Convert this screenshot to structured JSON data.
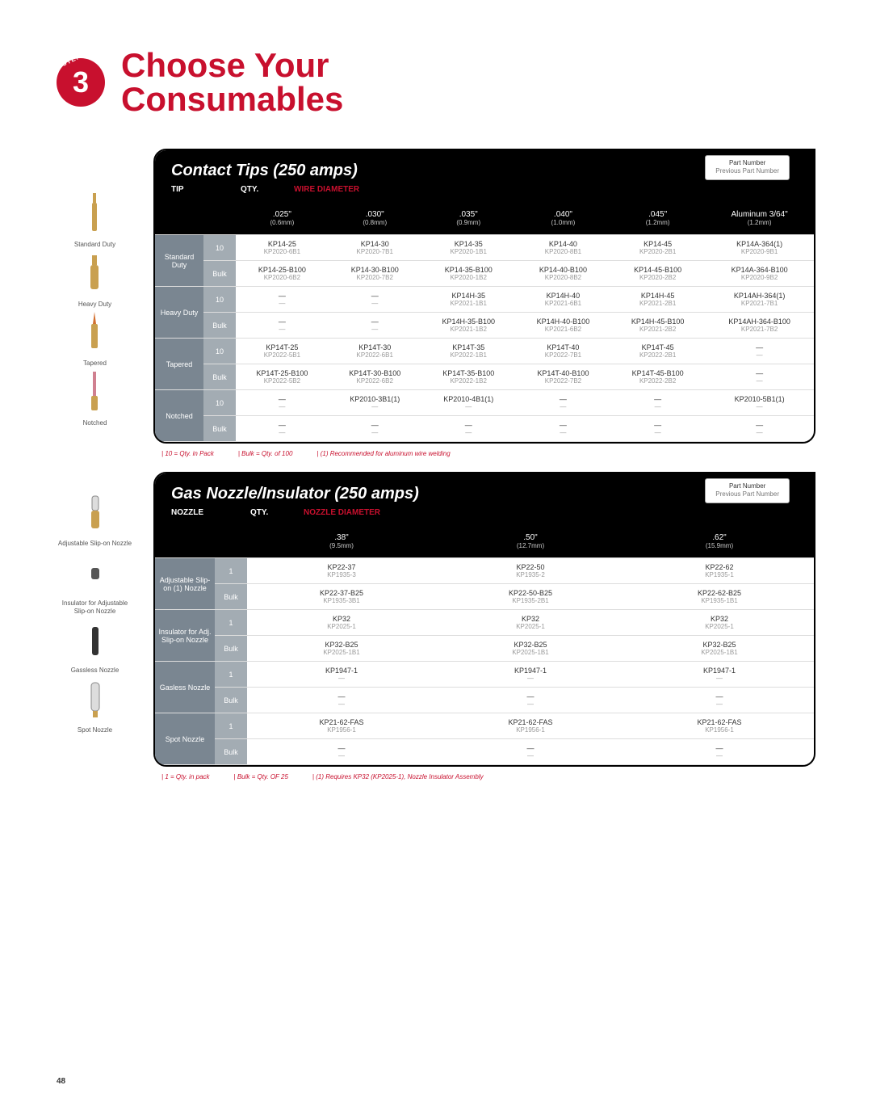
{
  "header": {
    "step_label": "STEP",
    "step_number": "3",
    "title_line1": "Choose Your",
    "title_line2": "Consumables"
  },
  "sidebar_tips": {
    "items": [
      {
        "label": "Standard Duty"
      },
      {
        "label": "Heavy Duty"
      },
      {
        "label": "Tapered"
      },
      {
        "label": "Notched"
      }
    ]
  },
  "sidebar_nozzles": {
    "items": [
      {
        "label": "Adjustable Slip-on Nozzle"
      },
      {
        "label": "Insulator for Adjustable Slip-on Nozzle"
      },
      {
        "label": "Gassless Nozzle"
      },
      {
        "label": "Spot Nozzle"
      }
    ]
  },
  "colors": {
    "brand_red": "#c8102e",
    "header_bg": "#000000",
    "tip_bg": "#7a8691",
    "qty_bg": "#a3acb3"
  },
  "legend": {
    "top": "Part Number",
    "bottom": "Previous Part Number"
  },
  "contact_tips": {
    "title": "Contact Tips (250 amps)",
    "col1": "TIP",
    "col2": "QTY.",
    "col3": "WIRE DIAMETER",
    "headers": [
      {
        "in": ".025\"",
        "mm": "(0.6mm)"
      },
      {
        "in": ".030\"",
        "mm": "(0.8mm)"
      },
      {
        "in": ".035\"",
        "mm": "(0.9mm)"
      },
      {
        "in": ".040\"",
        "mm": "(1.0mm)"
      },
      {
        "in": ".045\"",
        "mm": "(1.2mm)"
      },
      {
        "in": "Aluminum 3/64\"",
        "mm": "(1.2mm)"
      }
    ],
    "rows": [
      {
        "tip": "Standard Duty",
        "qty": "10",
        "cells": [
          {
            "p": "KP14-25",
            "o": "KP2020-6B1"
          },
          {
            "p": "KP14-30",
            "o": "KP2020-7B1"
          },
          {
            "p": "KP14-35",
            "o": "KP2020-1B1"
          },
          {
            "p": "KP14-40",
            "o": "KP2020-8B1"
          },
          {
            "p": "KP14-45",
            "o": "KP2020-2B1"
          },
          {
            "p": "KP14A-364(1)",
            "o": "KP2020-9B1"
          }
        ]
      },
      {
        "tip": "",
        "qty": "Bulk",
        "cells": [
          {
            "p": "KP14-25-B100",
            "o": "KP2020-6B2"
          },
          {
            "p": "KP14-30-B100",
            "o": "KP2020-7B2"
          },
          {
            "p": "KP14-35-B100",
            "o": "KP2020-1B2"
          },
          {
            "p": "KP14-40-B100",
            "o": "KP2020-8B2"
          },
          {
            "p": "KP14-45-B100",
            "o": "KP2020-2B2"
          },
          {
            "p": "KP14A-364-B100",
            "o": "KP2020-9B2"
          }
        ]
      },
      {
        "tip": "Heavy Duty",
        "qty": "10",
        "cells": [
          {
            "p": "—",
            "o": "—"
          },
          {
            "p": "—",
            "o": "—"
          },
          {
            "p": "KP14H-35",
            "o": "KP2021-1B1"
          },
          {
            "p": "KP14H-40",
            "o": "KP2021-6B1"
          },
          {
            "p": "KP14H-45",
            "o": "KP2021-2B1"
          },
          {
            "p": "KP14AH-364(1)",
            "o": "KP2021-7B1"
          }
        ]
      },
      {
        "tip": "",
        "qty": "Bulk",
        "cells": [
          {
            "p": "—",
            "o": "—"
          },
          {
            "p": "—",
            "o": "—"
          },
          {
            "p": "KP14H-35-B100",
            "o": "KP2021-1B2"
          },
          {
            "p": "KP14H-40-B100",
            "o": "KP2021-6B2"
          },
          {
            "p": "KP14H-45-B100",
            "o": "KP2021-2B2"
          },
          {
            "p": "KP14AH-364-B100",
            "o": "KP2021-7B2"
          }
        ]
      },
      {
        "tip": "Tapered",
        "qty": "10",
        "cells": [
          {
            "p": "KP14T-25",
            "o": "KP2022-5B1"
          },
          {
            "p": "KP14T-30",
            "o": "KP2022-6B1"
          },
          {
            "p": "KP14T-35",
            "o": "KP2022-1B1"
          },
          {
            "p": "KP14T-40",
            "o": "KP2022-7B1"
          },
          {
            "p": "KP14T-45",
            "o": "KP2022-2B1"
          },
          {
            "p": "—",
            "o": "—"
          }
        ]
      },
      {
        "tip": "",
        "qty": "Bulk",
        "cells": [
          {
            "p": "KP14T-25-B100",
            "o": "KP2022-5B2"
          },
          {
            "p": "KP14T-30-B100",
            "o": "KP2022-6B2"
          },
          {
            "p": "KP14T-35-B100",
            "o": "KP2022-1B2"
          },
          {
            "p": "KP14T-40-B100",
            "o": "KP2022-7B2"
          },
          {
            "p": "KP14T-45-B100",
            "o": "KP2022-2B2"
          },
          {
            "p": "—",
            "o": "—"
          }
        ]
      },
      {
        "tip": "Notched",
        "qty": "10",
        "cells": [
          {
            "p": "—",
            "o": "—"
          },
          {
            "p": "KP2010-3B1(1)",
            "o": "—"
          },
          {
            "p": "KP2010-4B1(1)",
            "o": "—"
          },
          {
            "p": "—",
            "o": "—"
          },
          {
            "p": "—",
            "o": "—"
          },
          {
            "p": "KP2010-5B1(1)",
            "o": "—"
          }
        ]
      },
      {
        "tip": "",
        "qty": "Bulk",
        "cells": [
          {
            "p": "—",
            "o": "—"
          },
          {
            "p": "—",
            "o": "—"
          },
          {
            "p": "—",
            "o": "—"
          },
          {
            "p": "—",
            "o": "—"
          },
          {
            "p": "—",
            "o": "—"
          },
          {
            "p": "—",
            "o": "—"
          }
        ]
      }
    ],
    "notes": {
      "a": "10 = Qty. in Pack",
      "b": "Bulk = Qty. of 100",
      "c": "(1) Recommended for aluminum wire welding"
    }
  },
  "gas_nozzle": {
    "title": "Gas Nozzle/Insulator (250 amps)",
    "col1": "NOZZLE",
    "col2": "QTY.",
    "col3": "NOZZLE DIAMETER",
    "headers": [
      {
        "in": ".38\"",
        "mm": "(9.5mm)"
      },
      {
        "in": ".50\"",
        "mm": "(12.7mm)"
      },
      {
        "in": ".62\"",
        "mm": "(15.9mm)"
      }
    ],
    "rows": [
      {
        "tip": "Adjustable Slip-on (1) Nozzle",
        "qty": "1",
        "cells": [
          {
            "p": "KP22-37",
            "o": "KP1935-3"
          },
          {
            "p": "KP22-50",
            "o": "KP1935-2"
          },
          {
            "p": "KP22-62",
            "o": "KP1935-1"
          }
        ]
      },
      {
        "tip": "",
        "qty": "Bulk",
        "cells": [
          {
            "p": "KP22-37-B25",
            "o": "KP1935-3B1"
          },
          {
            "p": "KP22-50-B25",
            "o": "KP1935-2B1"
          },
          {
            "p": "KP22-62-B25",
            "o": "KP1935-1B1"
          }
        ]
      },
      {
        "tip": "Insulator for Adj. Slip-on Nozzle",
        "qty": "1",
        "cells": [
          {
            "p": "KP32",
            "o": "KP2025-1"
          },
          {
            "p": "KP32",
            "o": "KP2025-1"
          },
          {
            "p": "KP32",
            "o": "KP2025-1"
          }
        ]
      },
      {
        "tip": "",
        "qty": "Bulk",
        "cells": [
          {
            "p": "KP32-B25",
            "o": "KP2025-1B1"
          },
          {
            "p": "KP32-B25",
            "o": "KP2025-1B1"
          },
          {
            "p": "KP32-B25",
            "o": "KP2025-1B1"
          }
        ]
      },
      {
        "tip": "Gasless Nozzle",
        "qty": "1",
        "cells": [
          {
            "p": "KP1947-1",
            "o": "—"
          },
          {
            "p": "KP1947-1",
            "o": "—"
          },
          {
            "p": "KP1947-1",
            "o": "—"
          }
        ]
      },
      {
        "tip": "",
        "qty": "Bulk",
        "cells": [
          {
            "p": "—",
            "o": "—"
          },
          {
            "p": "—",
            "o": "—"
          },
          {
            "p": "—",
            "o": "—"
          }
        ]
      },
      {
        "tip": "Spot Nozzle",
        "qty": "1",
        "cells": [
          {
            "p": "KP21-62-FAS",
            "o": "KP1956-1"
          },
          {
            "p": "KP21-62-FAS",
            "o": "KP1956-1"
          },
          {
            "p": "KP21-62-FAS",
            "o": "KP1956-1"
          }
        ]
      },
      {
        "tip": "",
        "qty": "Bulk",
        "cells": [
          {
            "p": "—",
            "o": "—"
          },
          {
            "p": "—",
            "o": "—"
          },
          {
            "p": "—",
            "o": "—"
          }
        ]
      }
    ],
    "notes": {
      "a": "1 = Qty. in pack",
      "b": "Bulk = Qty. OF 25",
      "c": "(1) Requires KP32 (KP2025-1), Nozzle Insulator Assembly"
    }
  },
  "page_number": "48"
}
